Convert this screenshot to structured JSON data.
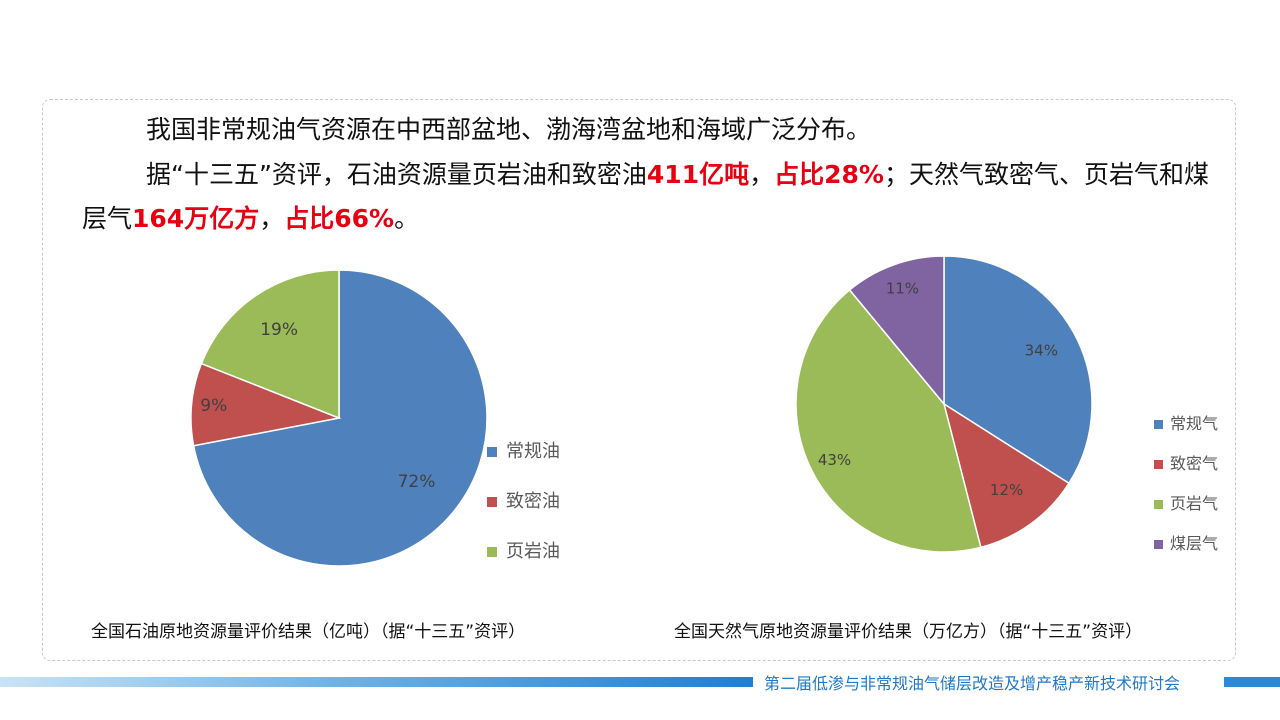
{
  "intro": {
    "line1": "我国非常规油气资源在中西部盆地、渤海湾盆地和海域广泛分布。",
    "p2_a": "据“十三五”资评，石油资源量页岩油和致密油",
    "p2_oil_amount": "411亿吨",
    "p2_sep1": "，",
    "p2_oil_share": "占比28%",
    "p2_b": "；天然气致密气、页岩气和煤层气",
    "p2_gas_amount": "164万亿方",
    "p2_sep2": "，",
    "p2_gas_share": "占比66%",
    "p2_end": "。"
  },
  "colors": {
    "blue": "#4f81bd",
    "red": "#c0504d",
    "green": "#9bbb59",
    "purple": "#8064a2",
    "highlight": "#e60012"
  },
  "chart_data": [
    {
      "type": "pie",
      "title": "全国石油原地资源量评价结果（亿吨）（据“十三五”资评）",
      "categories": [
        "常规油",
        "致密油",
        "页岩油"
      ],
      "values": [
        72,
        9,
        19
      ],
      "labels": [
        "72%",
        "9%",
        "19%"
      ],
      "colors": [
        "#4f81bd",
        "#c0504d",
        "#9bbb59"
      ],
      "legend": "right"
    },
    {
      "type": "pie",
      "title": "全国天然气原地资源量评价结果（万亿方）（据“十三五”资评）",
      "categories": [
        "常规气",
        "致密气",
        "页岩气",
        "煤层气"
      ],
      "values": [
        34,
        12,
        43,
        11
      ],
      "labels": [
        "34%",
        "12%",
        "43%",
        "11%"
      ],
      "colors": [
        "#4f81bd",
        "#c0504d",
        "#9bbb59",
        "#8064a2"
      ],
      "legend": "right"
    }
  ],
  "footer": {
    "text": "第二届低渗与非常规油气储层改造及增产稳产新技术研讨会"
  }
}
